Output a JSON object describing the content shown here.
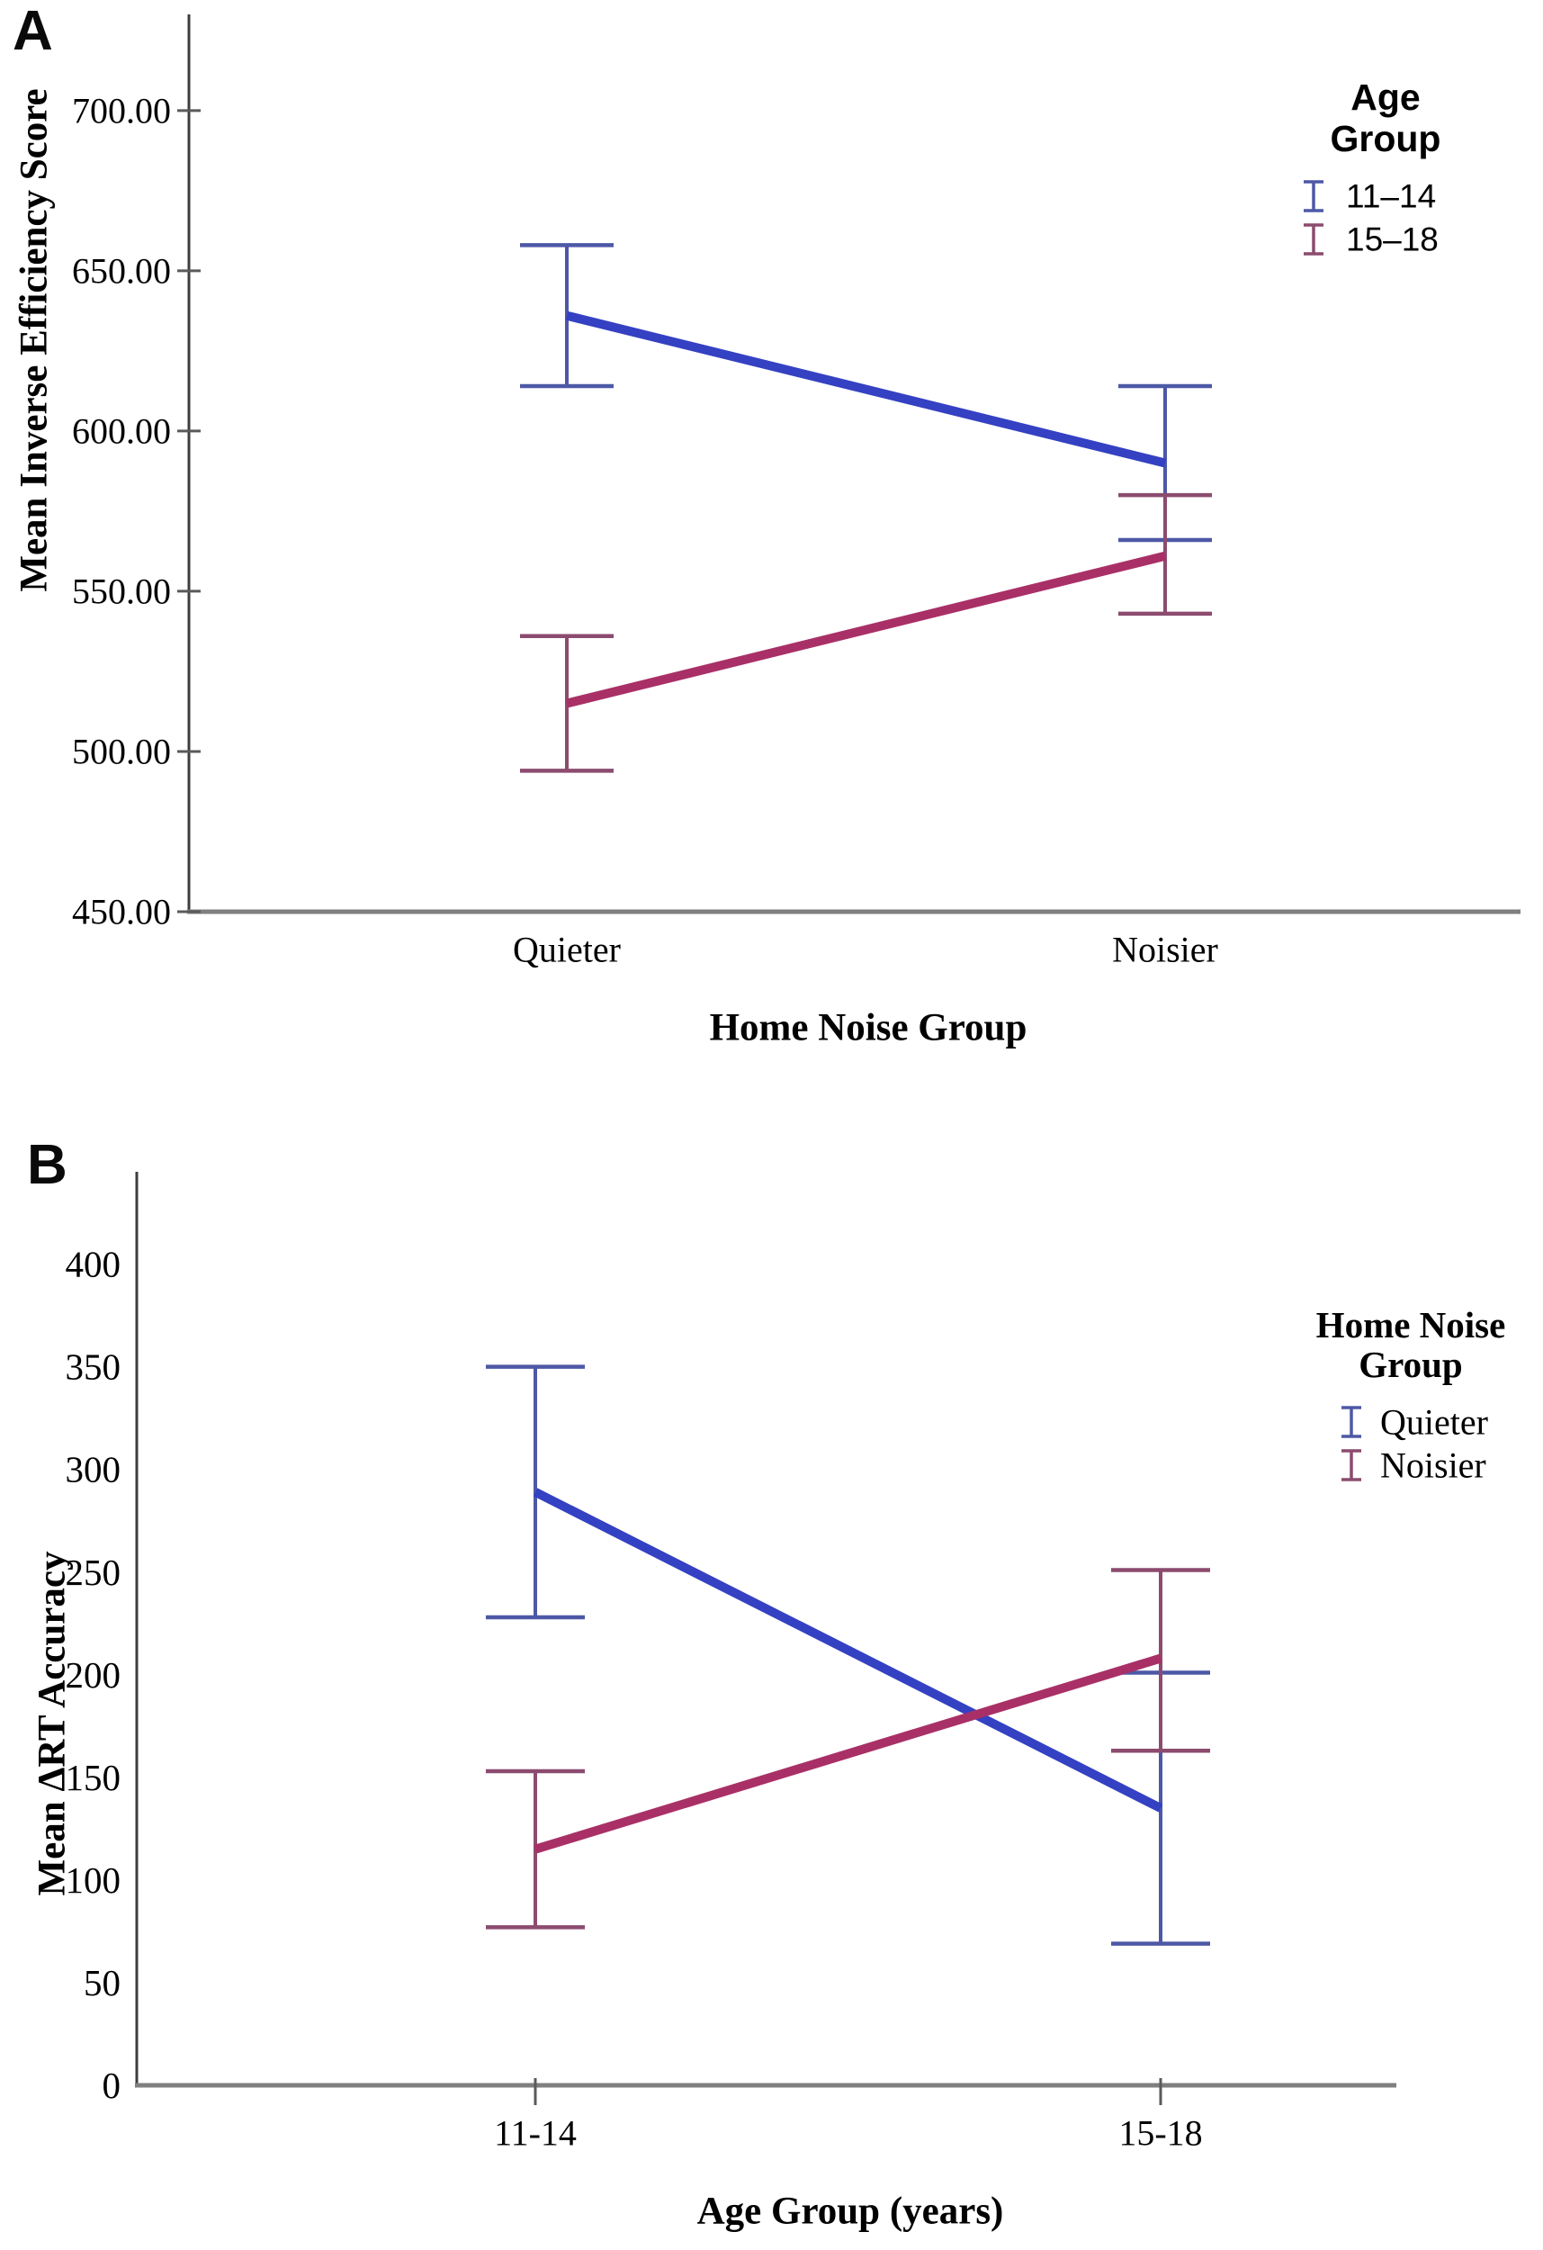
{
  "figure": {
    "background": "#ffffff",
    "panel_count": 2
  },
  "chart_data": [
    {
      "id": "A",
      "panel_label": "A",
      "type": "line",
      "subtype": "interaction-plot-with-error-bars",
      "categories": [
        "Quieter",
        "Noisier"
      ],
      "xlabel": "Home Noise Group",
      "ylabel": "Mean Inverse Efficiency Score",
      "ylim": [
        450,
        730
      ],
      "yticks": [
        450,
        500,
        550,
        600,
        650,
        700
      ],
      "ytick_format": "2dp",
      "grid": false,
      "legend": {
        "title": "Age Group",
        "title_lines": [
          "Age",
          "Group"
        ],
        "position": "top-right",
        "entries": [
          "11–14",
          "15–18"
        ]
      },
      "series": [
        {
          "name": "11–14",
          "line_color": "#3441c2",
          "error_color": "#4d58a6",
          "means": [
            636,
            590
          ],
          "ci_low": [
            614,
            566
          ],
          "ci_high": [
            658,
            614
          ]
        },
        {
          "name": "15–18",
          "line_color": "#a93067",
          "error_color": "#8c4b6f",
          "means": [
            515,
            561
          ],
          "ci_low": [
            494,
            543
          ],
          "ci_high": [
            536,
            580
          ]
        }
      ]
    },
    {
      "id": "B",
      "panel_label": "B",
      "type": "line",
      "subtype": "interaction-plot-with-error-bars",
      "categories": [
        "11-14",
        "15-18"
      ],
      "xlabel": "Age Group (years)",
      "ylabel": "Mean ΔRT Accuracy",
      "ylim": [
        0,
        445
      ],
      "yticks": [
        0,
        50,
        100,
        150,
        200,
        250,
        300,
        350,
        400
      ],
      "ytick_format": "int",
      "grid": false,
      "legend": {
        "title": "Home Noise Group",
        "title_lines": [
          "Home Noise",
          "Group"
        ],
        "position": "top-right",
        "entries": [
          "Quieter",
          "Noisier"
        ]
      },
      "series": [
        {
          "name": "Quieter",
          "line_color": "#3441c2",
          "error_color": "#4d58a6",
          "means": [
            289,
            135
          ],
          "ci_low": [
            228,
            69
          ],
          "ci_high": [
            350,
            201
          ]
        },
        {
          "name": "Noisier",
          "line_color": "#a93067",
          "error_color": "#8c4b6f",
          "means": [
            115,
            208
          ],
          "ci_low": [
            77,
            163
          ],
          "ci_high": [
            153,
            251
          ]
        }
      ]
    }
  ]
}
